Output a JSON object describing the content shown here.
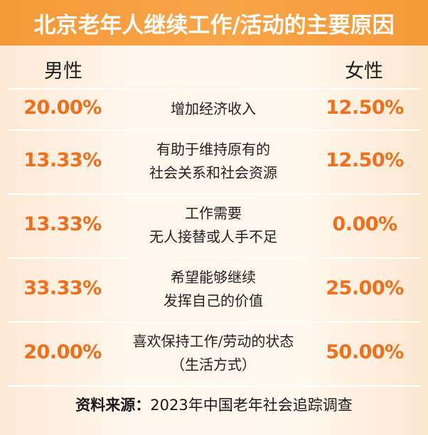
{
  "title": "北京老年人继续工作/活动的主要原因",
  "headers": {
    "male": "男性",
    "female": "女性"
  },
  "chart_data": {
    "type": "table",
    "title": "北京老年人继续工作/活动的主要原因",
    "columns": [
      "男性",
      "女性"
    ],
    "rows": [
      {
        "reason": [
          "增加经济收入"
        ],
        "male": "20.00%",
        "female": "12.50%"
      },
      {
        "reason": [
          "有助于维持原有的",
          "社会关系和社会资源"
        ],
        "male": "13.33%",
        "female": "12.50%"
      },
      {
        "reason": [
          "工作需要",
          "无人接替或人手不足"
        ],
        "male": "13.33%",
        "female": "0.00%"
      },
      {
        "reason": [
          "希望能够继续",
          "发挥自己的价值"
        ],
        "male": "33.33%",
        "female": "25.00%"
      },
      {
        "reason": [
          "喜欢保持工作/劳动的状态",
          "（生活方式）"
        ],
        "male": "20.00%",
        "female": "50.00%"
      }
    ]
  },
  "source": {
    "label": "资料来源：",
    "text": "2023年中国老年社会追踪调查"
  },
  "colors": {
    "title_bg": "#f59a3a",
    "percent": "#ee6f1c",
    "background": "#fff6ec"
  }
}
